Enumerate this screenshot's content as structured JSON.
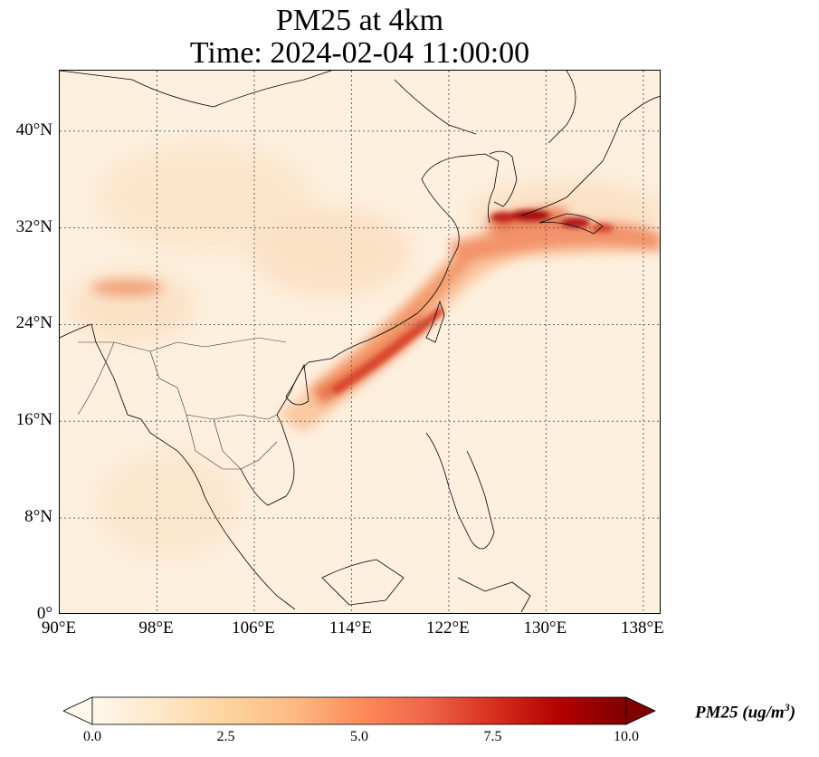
{
  "title": {
    "line1": "PM25 at 4km",
    "line2": "Time: 2024-02-04 11:00:00"
  },
  "map": {
    "lon_range": [
      90,
      139.5
    ],
    "lat_range": [
      0,
      45
    ],
    "lat_ticks": [
      {
        "value": 0,
        "label": "0°"
      },
      {
        "value": 8,
        "label": "8°N"
      },
      {
        "value": 16,
        "label": "16°N"
      },
      {
        "value": 24,
        "label": "24°N"
      },
      {
        "value": 32,
        "label": "32°N"
      },
      {
        "value": 40,
        "label": "40°N"
      }
    ],
    "lon_ticks": [
      {
        "value": 90,
        "label": "90°E"
      },
      {
        "value": 98,
        "label": "98°E"
      },
      {
        "value": 106,
        "label": "106°E"
      },
      {
        "value": 114,
        "label": "114°E"
      },
      {
        "value": 122,
        "label": "122°E"
      },
      {
        "value": 130,
        "label": "130°E"
      },
      {
        "value": 138,
        "label": "138°E"
      }
    ],
    "gridlines": "dotted",
    "background_color": "#fdf0df",
    "plume_colors": [
      "#fdd7b0",
      "#f5a072",
      "#e0583a",
      "#b8170f",
      "#7f0000"
    ]
  },
  "colorbar": {
    "label_main": "PM25 (ug/m",
    "label_sup": "3",
    "label_end": ")",
    "ticks": [
      "0.0",
      "2.5",
      "5.0",
      "7.5",
      "10.0"
    ],
    "range": [
      0,
      10
    ],
    "extend": "both",
    "colormap": "OrRd",
    "colors": [
      "#fff7ec",
      "#fee8c8",
      "#fdd49e",
      "#fdbb84",
      "#fc8d59",
      "#ef6548",
      "#d7301f",
      "#b30000",
      "#7f0000"
    ]
  }
}
